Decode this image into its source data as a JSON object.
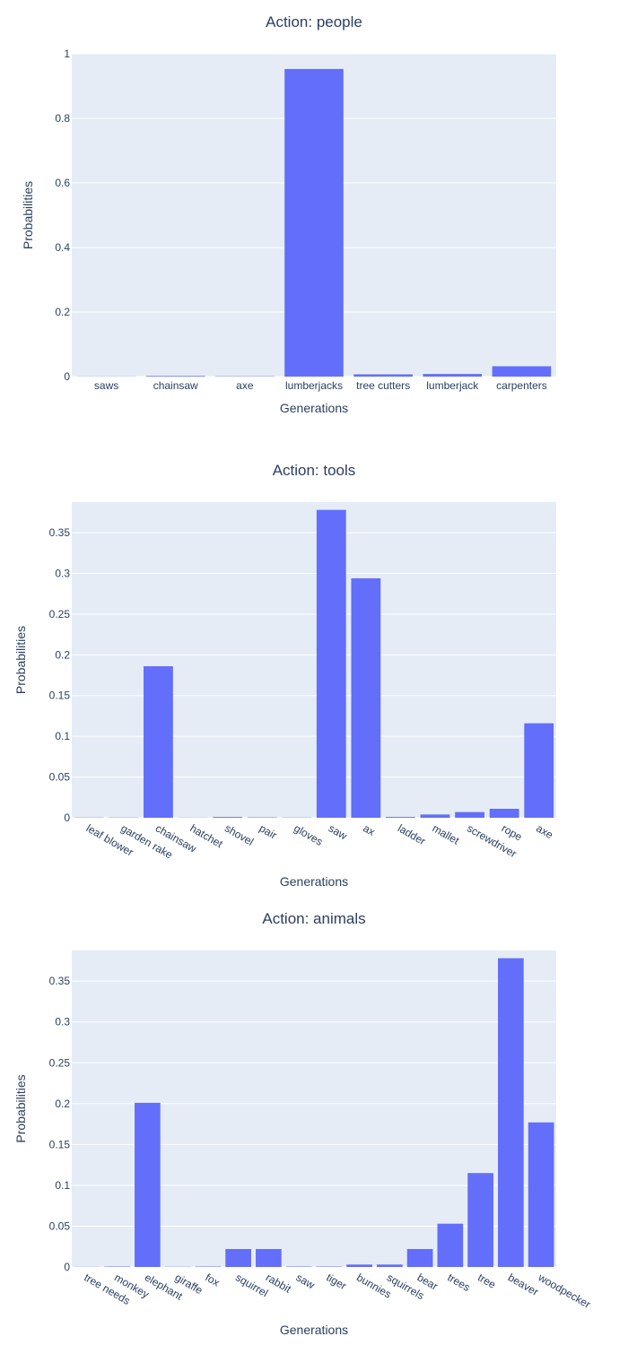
{
  "chart_data": [
    {
      "type": "bar",
      "title": "Action: people",
      "xlabel": "Generations",
      "ylabel": "Probabilities",
      "ylim": [
        0,
        1
      ],
      "yticks": [
        0,
        0.2,
        0.4,
        0.6,
        0.8,
        1
      ],
      "ytick_labels": [
        "0",
        "0.2",
        "0.4",
        "0.6",
        "0.8",
        "1"
      ],
      "tick_angle": 0,
      "categories": [
        "saws",
        "chainsaw",
        "axe",
        "lumberjacks",
        "tree cutters",
        "lumberjack",
        "carpenters"
      ],
      "values": [
        0.0005,
        0.002,
        0.001,
        0.953,
        0.007,
        0.008,
        0.032
      ],
      "color": "#636efa",
      "grid": true
    },
    {
      "type": "bar",
      "title": "Action: tools",
      "xlabel": "Generations",
      "ylabel": "Probabilities",
      "ylim": [
        0,
        0.3875
      ],
      "yticks": [
        0,
        0.05,
        0.1,
        0.15,
        0.2,
        0.25,
        0.3,
        0.35
      ],
      "ytick_labels": [
        "0",
        "0.05",
        "0.1",
        "0.15",
        "0.2",
        "0.25",
        "0.3",
        "0.35"
      ],
      "tick_angle": 30,
      "categories": [
        "leaf blower",
        "garden rake",
        "chainsaw",
        "hatchet",
        "shovel",
        "pair",
        "gloves",
        "saw",
        "ax",
        "ladder",
        "mallet",
        "screwdriver",
        "rope",
        "axe"
      ],
      "values": [
        0.0003,
        0.0003,
        0.186,
        0.0002,
        0.001,
        0.0005,
        0.0003,
        0.378,
        0.294,
        0.001,
        0.004,
        0.007,
        0.011,
        0.116
      ],
      "color": "#636efa",
      "grid": true
    },
    {
      "type": "bar",
      "title": "Action: animals",
      "xlabel": "Generations",
      "ylabel": "Probabilities",
      "ylim": [
        0,
        0.3875
      ],
      "yticks": [
        0,
        0.05,
        0.1,
        0.15,
        0.2,
        0.25,
        0.3,
        0.35
      ],
      "ytick_labels": [
        "0",
        "0.05",
        "0.1",
        "0.15",
        "0.2",
        "0.25",
        "0.3",
        "0.35"
      ],
      "tick_angle": 30,
      "categories": [
        "tree needs",
        "monkey",
        "elephant",
        "giraffe",
        "fox",
        "squirrel",
        "rabbit",
        "saw",
        "tiger",
        "bunnies",
        "squirrels",
        "bear",
        "trees",
        "tree",
        "beaver",
        "woodpecker"
      ],
      "values": [
        0.0002,
        0.0005,
        0.201,
        0.0003,
        0.0005,
        0.022,
        0.022,
        0.0005,
        0.0005,
        0.003,
        0.003,
        0.022,
        0.053,
        0.115,
        0.378,
        0.177
      ],
      "color": "#636efa",
      "grid": true
    }
  ]
}
